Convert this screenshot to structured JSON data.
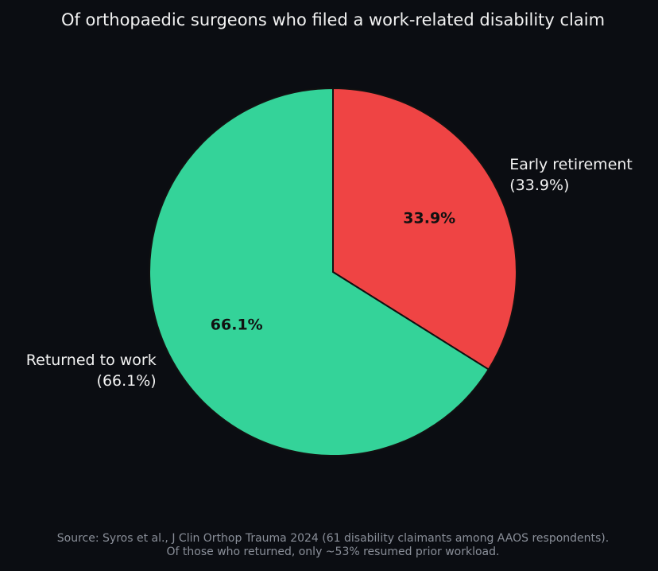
{
  "chart_data": {
    "type": "pie",
    "title": "Of orthopaedic surgeons who filed a work-related disability claim",
    "slices": [
      {
        "label_line1": "Early retirement",
        "label_line2": "(33.9%)",
        "inner_label": "33.9%",
        "value": 33.9,
        "color": "#ef4444"
      },
      {
        "label_line1": "Returned to work",
        "label_line2": "(66.1%)",
        "inner_label": "66.1%",
        "value": 66.1,
        "color": "#34d399"
      }
    ],
    "start_angle": 90,
    "direction": "clockwise",
    "edge_color": "#111111",
    "notes": [
      "Source: Syros et al., J Clin Orthop Trauma 2024 (61 disability claimants among AAOS respondents).",
      "Of those who returned, only ~53% resumed prior workload."
    ]
  },
  "colors": {
    "background": "#0b0d12",
    "text": "#f2f2f2",
    "muted": "#8a8f99"
  }
}
